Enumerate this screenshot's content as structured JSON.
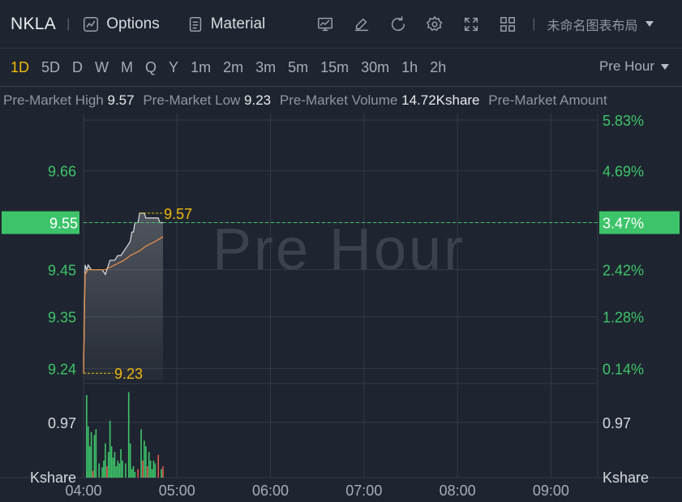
{
  "toolbar": {
    "ticker": "NKLA",
    "options_label": "Options",
    "material_label": "Material",
    "layout_name": "未命名图表布局",
    "icons": [
      "indicator-icon",
      "draw-icon",
      "refresh-icon",
      "settings-icon",
      "fullscreen-icon",
      "grid-layout-icon"
    ]
  },
  "periods": [
    "1D",
    "5D",
    "D",
    "W",
    "M",
    "Q",
    "Y",
    "1m",
    "2m",
    "3m",
    "5m",
    "15m",
    "30m",
    "1h",
    "2h"
  ],
  "active_period": "1D",
  "session_selector": "Pre Hour",
  "info": {
    "high_label": "Pre-Market High",
    "high_value": "9.57",
    "low_label": "Pre-Market Low",
    "low_value": "9.23",
    "volume_label": "Pre-Market Volume",
    "volume_value": "14.72Kshare",
    "amount_label": "Pre-Market Amount"
  },
  "colors": {
    "background": "#1f2530",
    "grid": "#333a46",
    "up": "#3dc46a",
    "down": "#e0594f",
    "accent": "#f0b90b",
    "avg_line": "#f0934a",
    "price_line": "#d9dde3"
  },
  "chart_data": {
    "type": "line",
    "watermark": "Pre Hour",
    "x_ticks": [
      "04:00",
      "05:00",
      "06:00",
      "07:00",
      "08:00",
      "09:00"
    ],
    "x_tick_minutes": [
      0,
      60,
      120,
      180,
      240,
      300
    ],
    "x_range_minutes": [
      0,
      330
    ],
    "y_ticks": [
      "9.66",
      "9.55",
      "9.45",
      "9.35",
      "9.24"
    ],
    "y_tick_values": [
      9.66,
      9.55,
      9.45,
      9.35,
      9.24
    ],
    "pct_ticks": [
      "5.83%",
      "4.69%",
      "3.47%",
      "2.42%",
      "1.28%",
      "0.14%"
    ],
    "pct_tick_values": [
      9.768,
      9.66,
      9.55,
      9.45,
      9.35,
      9.24
    ],
    "ylim": [
      9.208,
      9.768
    ],
    "current_price": "9.55",
    "current_pct": "3.47%",
    "high_marker": "9.57",
    "low_marker": "9.23",
    "price_series": {
      "minutes": [
        0,
        1,
        2,
        3,
        5,
        8,
        12,
        14,
        15,
        17,
        20,
        22,
        24,
        26,
        28,
        30,
        31,
        32,
        33,
        34,
        35,
        36,
        37,
        38,
        39,
        40,
        41,
        42,
        43,
        44,
        45,
        46,
        47,
        48,
        49,
        50,
        51
      ],
      "values": [
        9.23,
        9.46,
        9.45,
        9.46,
        9.45,
        9.45,
        9.45,
        9.44,
        9.45,
        9.47,
        9.47,
        9.48,
        9.48,
        9.49,
        9.5,
        9.51,
        9.53,
        9.53,
        9.55,
        9.55,
        9.55,
        9.57,
        9.57,
        9.57,
        9.57,
        9.56,
        9.56,
        9.56,
        9.56,
        9.56,
        9.56,
        9.56,
        9.56,
        9.56,
        9.55,
        9.55,
        9.55
      ]
    },
    "avg_series": {
      "minutes": [
        0,
        1,
        3,
        8,
        14,
        20,
        26,
        30,
        36,
        40,
        46,
        51
      ],
      "values": [
        9.23,
        9.44,
        9.45,
        9.45,
        9.45,
        9.46,
        9.47,
        9.48,
        9.49,
        9.5,
        9.51,
        9.52
      ]
    },
    "volume": {
      "y_label": "0.97",
      "y_unit": "Kshare",
      "ylim": [
        0,
        1.55
      ],
      "bars": [
        {
          "m": 2,
          "v": 1.45,
          "c": "up"
        },
        {
          "m": 3,
          "v": 0.9,
          "c": "up"
        },
        {
          "m": 4,
          "v": 0.55,
          "c": "up"
        },
        {
          "m": 5,
          "v": 0.8,
          "c": "up"
        },
        {
          "m": 6,
          "v": 0.12,
          "c": "down"
        },
        {
          "m": 7,
          "v": 0.75,
          "c": "up"
        },
        {
          "m": 8,
          "v": 0.85,
          "c": "up"
        },
        {
          "m": 10,
          "v": 0.25,
          "c": "up"
        },
        {
          "m": 12,
          "v": 0.18,
          "c": "up"
        },
        {
          "m": 13,
          "v": 0.3,
          "c": "up"
        },
        {
          "m": 14,
          "v": 0.6,
          "c": "up"
        },
        {
          "m": 15,
          "v": 0.2,
          "c": "down"
        },
        {
          "m": 16,
          "v": 0.45,
          "c": "up"
        },
        {
          "m": 17,
          "v": 1.0,
          "c": "up"
        },
        {
          "m": 18,
          "v": 0.55,
          "c": "up"
        },
        {
          "m": 19,
          "v": 0.35,
          "c": "up"
        },
        {
          "m": 20,
          "v": 0.45,
          "c": "up"
        },
        {
          "m": 21,
          "v": 0.2,
          "c": "up"
        },
        {
          "m": 22,
          "v": 0.3,
          "c": "up"
        },
        {
          "m": 23,
          "v": 0.25,
          "c": "up"
        },
        {
          "m": 24,
          "v": 0.5,
          "c": "up"
        },
        {
          "m": 25,
          "v": 0.3,
          "c": "up"
        },
        {
          "m": 27,
          "v": 0.25,
          "c": "up"
        },
        {
          "m": 29,
          "v": 1.5,
          "c": "up"
        },
        {
          "m": 30,
          "v": 0.6,
          "c": "up"
        },
        {
          "m": 31,
          "v": 0.15,
          "c": "up"
        },
        {
          "m": 32,
          "v": 0.2,
          "c": "up"
        },
        {
          "m": 33,
          "v": 0.1,
          "c": "up"
        },
        {
          "m": 35,
          "v": 0.15,
          "c": "down"
        },
        {
          "m": 37,
          "v": 0.85,
          "c": "up"
        },
        {
          "m": 38,
          "v": 0.3,
          "c": "down"
        },
        {
          "m": 39,
          "v": 0.65,
          "c": "up"
        },
        {
          "m": 40,
          "v": 0.55,
          "c": "up"
        },
        {
          "m": 41,
          "v": 0.2,
          "c": "down"
        },
        {
          "m": 42,
          "v": 0.45,
          "c": "up"
        },
        {
          "m": 43,
          "v": 0.3,
          "c": "up"
        },
        {
          "m": 44,
          "v": 0.15,
          "c": "up"
        },
        {
          "m": 45,
          "v": 0.3,
          "c": "up"
        },
        {
          "m": 46,
          "v": 0.25,
          "c": "up"
        },
        {
          "m": 48,
          "v": 0.4,
          "c": "down"
        },
        {
          "m": 50,
          "v": 0.15,
          "c": "up"
        },
        {
          "m": 51,
          "v": 0.2,
          "c": "down"
        }
      ]
    }
  }
}
